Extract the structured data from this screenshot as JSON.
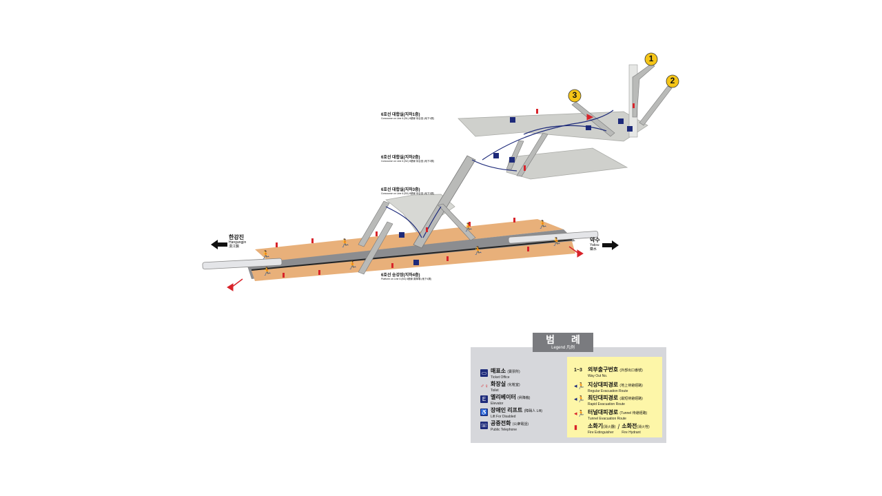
{
  "levels": {
    "b1": {
      "ko": "6호선 대합실(지하1층)",
      "en": "Concourse on Line 6 (B1) 6號線 待合室 (地下1層)"
    },
    "b2": {
      "ko": "6호선 대합실(지하2층)",
      "en": "Concourse on Line 6 (B2) 6號線 待合室 (地下2層)"
    },
    "b3": {
      "ko": "6호선 대합실(지하3층)",
      "en": "Concourse on Line 6 (B3) 6號線 待合室 (地下3層)"
    },
    "b4": {
      "ko": "6호선 승강장(지하4층)",
      "en": "Platform on Line 6 (B4) 6號線 乘降場 (地下4層)"
    }
  },
  "directions": {
    "left": {
      "ko": "한강진",
      "en": "Hangangjin",
      "hanja": "漢江鎭"
    },
    "right": {
      "ko": "약수",
      "en": "Yaksu",
      "hanja": "藥水"
    }
  },
  "exits": [
    "1",
    "2",
    "3"
  ],
  "legend": {
    "title": "범 례",
    "subtitle": "Legend 凡例",
    "left_items": [
      {
        "icon": "ticket-office-icon",
        "glyph": "▭",
        "ko": "매표소",
        "hanja": "(賣票所)",
        "en": "Ticket Office"
      },
      {
        "icon": "toilet-icon",
        "glyph": "♂♀",
        "ko": "화장실",
        "hanja": "(化粧室)",
        "en": "Toilet"
      },
      {
        "icon": "elevator-icon",
        "glyph": "E",
        "ko": "엘리베이터",
        "hanja": "(昇降機)",
        "en": "Elevator"
      },
      {
        "icon": "wheelchair-lift-icon",
        "glyph": "♿",
        "ko": "장애인 리프트",
        "hanja": "(障碍人 Lift)",
        "en": "Lift For Disabled"
      },
      {
        "icon": "public-telephone-icon",
        "glyph": "☏",
        "ko": "공중전화",
        "hanja": "(公衆電話)",
        "en": "Public Telephone"
      }
    ],
    "right_items": [
      {
        "icon": "exit-number-icon",
        "glyph": "1~3",
        "ko": "외부출구번호",
        "hanja": "(外部出口番號)",
        "en": "Way Out No."
      },
      {
        "icon": "regular-evacuation-icon",
        "glyph": "◂🏃",
        "ko": "지상대피경로",
        "hanja": "(地上待避經路)",
        "en": "Regular Evacuation Route"
      },
      {
        "icon": "rapid-evacuation-icon",
        "glyph": "◂🏃",
        "ko": "최단대피경로",
        "hanja": "(最短待避經路)",
        "en": "Rapid Evacuation Route"
      },
      {
        "icon": "tunnel-evacuation-icon",
        "glyph": "◂🏃",
        "ko": "터널대피경로",
        "hanja": "(Tunnel 待避經路)",
        "en": "Tunnel Evacuation Route"
      },
      {
        "icon": "fire-extinguisher-icon",
        "glyph": "▮",
        "ko": "소화기",
        "hanja": "(消火器)",
        "en": "Fire Extinguisher",
        "ko2": "소화전",
        "hanja2": "(消火栓)",
        "en2": "Fire Hydrant"
      }
    ]
  },
  "colors": {
    "platform": "#e8b07a",
    "track": "#8c8d90",
    "concourse": "#cfd0cc",
    "route": "#1d2a7a",
    "evacuation": "#d8232a",
    "exit_badge": "#f5c518",
    "legend_bg": "#d6d7db",
    "legend_highlight": "#fdf6a8"
  }
}
